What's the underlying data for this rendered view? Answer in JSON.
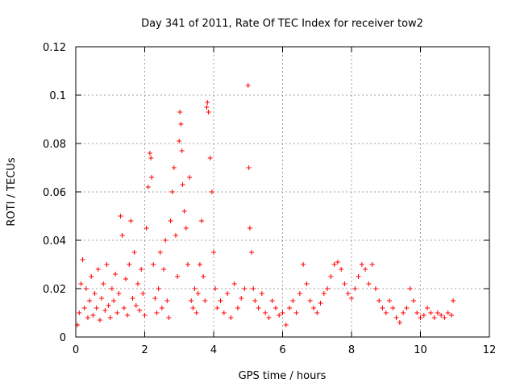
{
  "chart_data": {
    "type": "scatter",
    "title": "Day 341 of 2011, Rate Of TEC Index for receiver tow2",
    "xlabel": "GPS time / hours",
    "ylabel": "ROTI / TECUs",
    "xlim": [
      0,
      12
    ],
    "ylim": [
      0,
      0.12
    ],
    "x_ticks": [
      0,
      2,
      4,
      6,
      8,
      10,
      12
    ],
    "x_tick_labels": [
      "0",
      "2",
      "4",
      "6",
      "8",
      "10",
      "12"
    ],
    "y_ticks": [
      0,
      0.02,
      0.04,
      0.06,
      0.08,
      0.1,
      0.12
    ],
    "y_tick_labels": [
      "0",
      "0.02",
      "0.04",
      "0.06",
      "0.08",
      "0.1",
      "0.12"
    ],
    "grid": true,
    "marker": "plus",
    "color": "#ff0000",
    "series": [
      {
        "name": "ROTI",
        "points": [
          [
            0.05,
            0.005
          ],
          [
            0.1,
            0.01
          ],
          [
            0.15,
            0.022
          ],
          [
            0.2,
            0.032
          ],
          [
            0.25,
            0.012
          ],
          [
            0.3,
            0.02
          ],
          [
            0.35,
            0.008
          ],
          [
            0.4,
            0.015
          ],
          [
            0.45,
            0.025
          ],
          [
            0.5,
            0.009
          ],
          [
            0.55,
            0.018
          ],
          [
            0.6,
            0.012
          ],
          [
            0.65,
            0.028
          ],
          [
            0.7,
            0.007
          ],
          [
            0.75,
            0.016
          ],
          [
            0.8,
            0.022
          ],
          [
            0.85,
            0.011
          ],
          [
            0.9,
            0.03
          ],
          [
            0.95,
            0.013
          ],
          [
            1.0,
            0.008
          ],
          [
            1.05,
            0.02
          ],
          [
            1.1,
            0.015
          ],
          [
            1.15,
            0.026
          ],
          [
            1.2,
            0.01
          ],
          [
            1.25,
            0.018
          ],
          [
            1.3,
            0.05
          ],
          [
            1.35,
            0.042
          ],
          [
            1.4,
            0.012
          ],
          [
            1.45,
            0.024
          ],
          [
            1.5,
            0.009
          ],
          [
            1.55,
            0.03
          ],
          [
            1.6,
            0.048
          ],
          [
            1.65,
            0.016
          ],
          [
            1.7,
            0.035
          ],
          [
            1.75,
            0.013
          ],
          [
            1.8,
            0.022
          ],
          [
            1.85,
            0.011
          ],
          [
            1.9,
            0.028
          ],
          [
            1.95,
            0.018
          ],
          [
            2.0,
            0.009
          ],
          [
            2.05,
            0.045
          ],
          [
            2.1,
            0.062
          ],
          [
            2.15,
            0.076
          ],
          [
            2.18,
            0.074
          ],
          [
            2.2,
            0.066
          ],
          [
            2.25,
            0.03
          ],
          [
            2.3,
            0.016
          ],
          [
            2.35,
            0.01
          ],
          [
            2.4,
            0.02
          ],
          [
            2.45,
            0.035
          ],
          [
            2.5,
            0.012
          ],
          [
            2.55,
            0.028
          ],
          [
            2.6,
            0.04
          ],
          [
            2.65,
            0.015
          ],
          [
            2.7,
            0.008
          ],
          [
            2.75,
            0.048
          ],
          [
            2.8,
            0.06
          ],
          [
            2.85,
            0.07
          ],
          [
            2.9,
            0.042
          ],
          [
            2.95,
            0.025
          ],
          [
            3.0,
            0.081
          ],
          [
            3.02,
            0.093
          ],
          [
            3.05,
            0.088
          ],
          [
            3.08,
            0.077
          ],
          [
            3.1,
            0.063
          ],
          [
            3.15,
            0.052
          ],
          [
            3.2,
            0.045
          ],
          [
            3.25,
            0.03
          ],
          [
            3.3,
            0.066
          ],
          [
            3.35,
            0.015
          ],
          [
            3.4,
            0.012
          ],
          [
            3.45,
            0.02
          ],
          [
            3.5,
            0.01
          ],
          [
            3.55,
            0.018
          ],
          [
            3.6,
            0.03
          ],
          [
            3.65,
            0.048
          ],
          [
            3.7,
            0.025
          ],
          [
            3.75,
            0.015
          ],
          [
            3.8,
            0.095
          ],
          [
            3.82,
            0.097
          ],
          [
            3.85,
            0.093
          ],
          [
            3.9,
            0.074
          ],
          [
            3.95,
            0.06
          ],
          [
            4.0,
            0.035
          ],
          [
            4.05,
            0.02
          ],
          [
            4.1,
            0.012
          ],
          [
            4.2,
            0.015
          ],
          [
            4.3,
            0.01
          ],
          [
            4.4,
            0.018
          ],
          [
            4.5,
            0.008
          ],
          [
            4.6,
            0.022
          ],
          [
            4.7,
            0.012
          ],
          [
            4.8,
            0.016
          ],
          [
            4.9,
            0.02
          ],
          [
            5.0,
            0.104
          ],
          [
            5.02,
            0.07
          ],
          [
            5.05,
            0.045
          ],
          [
            5.1,
            0.035
          ],
          [
            5.15,
            0.02
          ],
          [
            5.2,
            0.015
          ],
          [
            5.3,
            0.012
          ],
          [
            5.4,
            0.018
          ],
          [
            5.5,
            0.01
          ],
          [
            5.6,
            0.008
          ],
          [
            5.7,
            0.015
          ],
          [
            5.8,
            0.012
          ],
          [
            5.9,
            0.009
          ],
          [
            6.0,
            0.01
          ],
          [
            6.1,
            0.005
          ],
          [
            6.2,
            0.012
          ],
          [
            6.3,
            0.015
          ],
          [
            6.4,
            0.01
          ],
          [
            6.5,
            0.018
          ],
          [
            6.6,
            0.03
          ],
          [
            6.7,
            0.022
          ],
          [
            6.8,
            0.015
          ],
          [
            6.9,
            0.012
          ],
          [
            7.0,
            0.01
          ],
          [
            7.1,
            0.014
          ],
          [
            7.2,
            0.018
          ],
          [
            7.3,
            0.02
          ],
          [
            7.4,
            0.025
          ],
          [
            7.5,
            0.03
          ],
          [
            7.6,
            0.031
          ],
          [
            7.7,
            0.028
          ],
          [
            7.8,
            0.022
          ],
          [
            7.9,
            0.018
          ],
          [
            8.0,
            0.016
          ],
          [
            8.1,
            0.02
          ],
          [
            8.2,
            0.025
          ],
          [
            8.3,
            0.03
          ],
          [
            8.4,
            0.028
          ],
          [
            8.5,
            0.022
          ],
          [
            8.6,
            0.03
          ],
          [
            8.7,
            0.02
          ],
          [
            8.8,
            0.015
          ],
          [
            8.9,
            0.012
          ],
          [
            9.0,
            0.01
          ],
          [
            9.1,
            0.015
          ],
          [
            9.2,
            0.012
          ],
          [
            9.3,
            0.008
          ],
          [
            9.4,
            0.006
          ],
          [
            9.5,
            0.01
          ],
          [
            9.6,
            0.012
          ],
          [
            9.7,
            0.02
          ],
          [
            9.8,
            0.015
          ],
          [
            9.9,
            0.01
          ],
          [
            10.0,
            0.008
          ],
          [
            10.1,
            0.009
          ],
          [
            10.2,
            0.012
          ],
          [
            10.3,
            0.01
          ],
          [
            10.4,
            0.008
          ],
          [
            10.5,
            0.01
          ],
          [
            10.6,
            0.009
          ],
          [
            10.7,
            0.008
          ],
          [
            10.8,
            0.01
          ],
          [
            10.9,
            0.009
          ],
          [
            10.95,
            0.015
          ]
        ]
      }
    ]
  }
}
